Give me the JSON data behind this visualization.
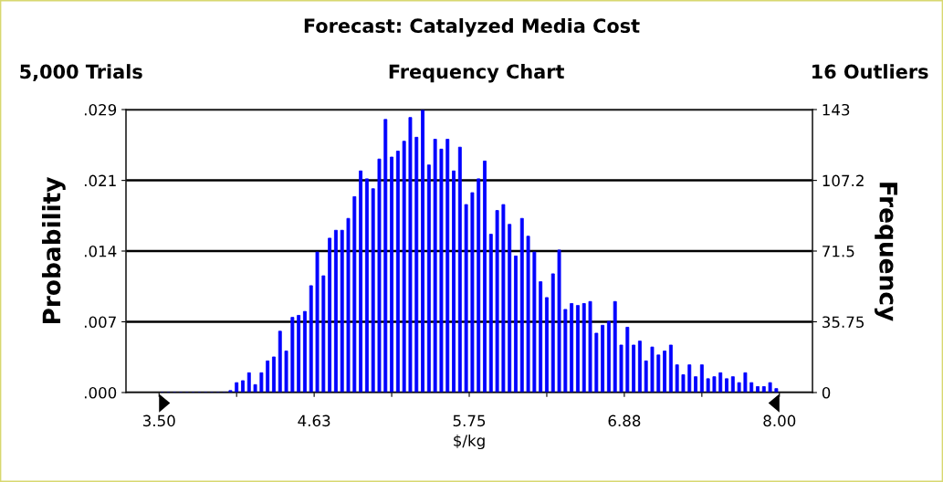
{
  "chart_data": {
    "type": "histogram",
    "title": "Forecast: Catalyzed Media Cost",
    "subtitle": "Frequency Chart",
    "annotations": [
      "5,000 Trials",
      "16 Outliers"
    ],
    "xlabel": "$/kg",
    "ylabel": "Probability",
    "y2label": "Frequency",
    "bins": [
      3.5,
      3.545,
      3.59,
      3.635,
      3.68,
      3.725,
      3.77,
      3.815,
      3.86,
      3.905,
      3.95,
      3.995,
      4.04,
      4.085,
      4.13,
      4.175,
      4.22,
      4.265,
      4.31,
      4.355,
      4.4,
      4.445,
      4.49,
      4.535,
      4.58,
      4.625,
      4.67,
      4.715,
      4.76,
      4.805,
      4.85,
      4.895,
      4.94,
      4.985,
      5.03,
      5.075,
      5.12,
      5.165,
      5.21,
      5.255,
      5.3,
      5.345,
      5.39,
      5.435,
      5.48,
      5.525,
      5.57,
      5.615,
      5.66,
      5.705,
      5.75,
      5.795,
      5.84,
      5.885,
      5.93,
      5.975,
      6.02,
      6.065,
      6.11,
      6.155,
      6.2,
      6.245,
      6.29,
      6.335,
      6.38,
      6.425,
      6.47,
      6.515,
      6.56,
      6.605,
      6.65,
      6.695,
      6.74,
      6.785,
      6.83,
      6.875,
      6.92,
      6.965,
      7.01,
      7.055,
      7.1,
      7.145,
      7.19,
      7.235,
      7.28,
      7.325,
      7.37,
      7.415,
      7.46,
      7.505,
      7.55,
      7.595,
      7.64,
      7.685,
      7.73,
      7.775,
      7.82,
      7.865,
      7.91,
      7.955,
      8.0
    ],
    "series": [
      {
        "axis": "y2",
        "color": "#0000ff",
        "values": [
          0,
          0,
          0,
          0,
          0,
          0,
          0,
          0,
          0,
          0,
          0,
          1,
          5,
          6,
          10,
          4,
          10,
          16,
          18,
          31,
          21,
          38,
          39,
          41,
          54,
          71,
          59,
          78,
          82,
          82,
          88,
          99,
          112,
          108,
          103,
          118,
          138,
          119,
          122,
          127,
          139,
          129,
          143,
          115,
          128,
          123,
          128,
          112,
          124,
          95,
          101,
          108,
          117,
          80,
          92,
          95,
          85,
          69,
          88,
          79,
          71,
          56,
          48,
          60,
          72,
          42,
          45,
          44,
          45,
          46,
          30,
          34,
          36,
          46,
          24,
          33,
          24,
          26,
          16,
          23,
          19,
          21,
          24,
          14,
          9,
          14,
          8,
          14,
          7,
          8,
          10,
          7,
          8,
          5,
          10,
          5,
          3,
          3,
          5,
          2
        ]
      }
    ],
    "xlim": [
      3.26,
      8.24
    ],
    "xticks": [
      {
        "value": 3.5,
        "label": "3.50"
      },
      {
        "value": 4.0625,
        "label": null
      },
      {
        "value": 4.625,
        "label": "4.63"
      },
      {
        "value": 5.1875,
        "label": null
      },
      {
        "value": 5.75,
        "label": "5.75"
      },
      {
        "value": 6.3125,
        "label": null
      },
      {
        "value": 6.875,
        "label": "6.88"
      },
      {
        "value": 7.4375,
        "label": null
      },
      {
        "value": 8.0,
        "label": "8.00"
      }
    ],
    "ylim": [
      0,
      0.0286
    ],
    "yticks": [
      {
        "value": 0,
        "label": ".000"
      },
      {
        "value": 0.00715,
        "label": ".007"
      },
      {
        "value": 0.0143,
        "label": ".014"
      },
      {
        "value": 0.02144,
        "label": ".021"
      },
      {
        "value": 0.0286,
        "label": ".029"
      }
    ],
    "y2lim": [
      0,
      143
    ],
    "y2ticks": [
      0,
      35.75,
      71.5,
      107.2,
      143
    ],
    "grid": "y"
  }
}
